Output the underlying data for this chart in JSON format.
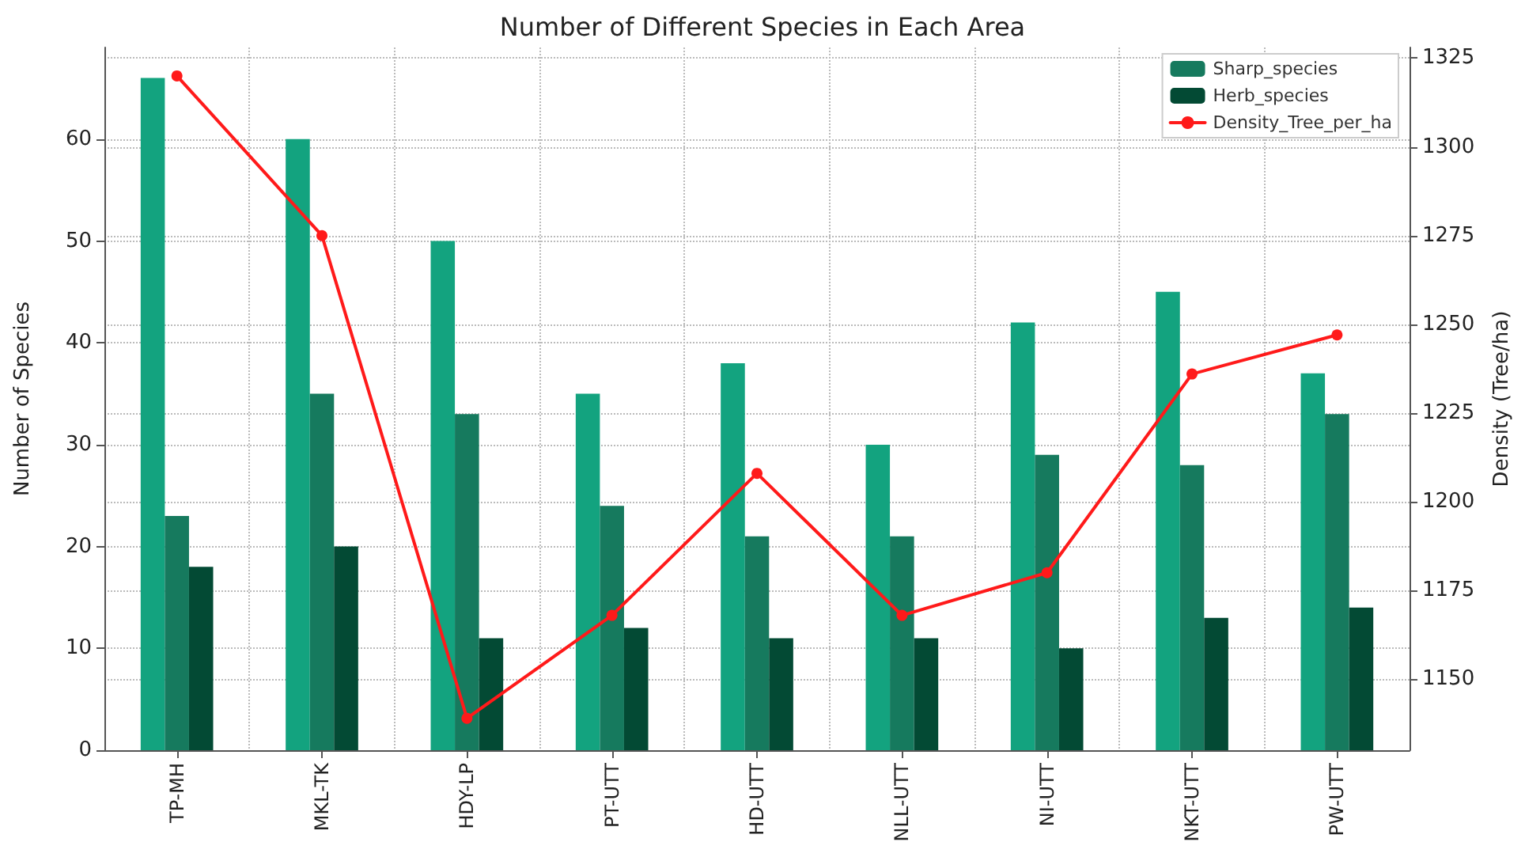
{
  "chart_data": {
    "type": "bar",
    "title": "Number of Different Species in Each Area",
    "ylabel": "Number of Species",
    "y2label": "Density (Tree/ha)",
    "categories": [
      "TP-MH",
      "MKL-TK",
      "HDY-LP",
      "PT-UTT",
      "HD-UTT",
      "NLL-UTT",
      "NI-UTT",
      "NKT-UTT",
      "PW-UTT"
    ],
    "series": [
      {
        "color": "#13a37f",
        "values": [
          66,
          60,
          50,
          35,
          38,
          30,
          42,
          45,
          37
        ]
      },
      {
        "name": "Sharp_species",
        "color": "#167a5e",
        "values": [
          23,
          35,
          33,
          24,
          21,
          21,
          29,
          28,
          33
        ]
      },
      {
        "name": "Herb_species",
        "color": "#034a34",
        "values": [
          18,
          20,
          11,
          12,
          11,
          11,
          10,
          13,
          14
        ]
      },
      {
        "name": "Density_Tree_per_ha",
        "type": "line",
        "axis": "y2",
        "color": "#ff1a1a",
        "marker": "circle",
        "line_style": "solid",
        "values": [
          1320,
          1275,
          1139,
          1168,
          1208,
          1168,
          1180,
          1236,
          1247
        ]
      }
    ],
    "ylim": [
      0,
      69
    ],
    "yticks": [
      0,
      10,
      20,
      30,
      40,
      50,
      60
    ],
    "y2lim": [
      1130,
      1328
    ],
    "y2ticks": [
      1150,
      1175,
      1200,
      1225,
      1250,
      1275,
      1300,
      1325
    ],
    "grid": true,
    "legend": "top right"
  }
}
